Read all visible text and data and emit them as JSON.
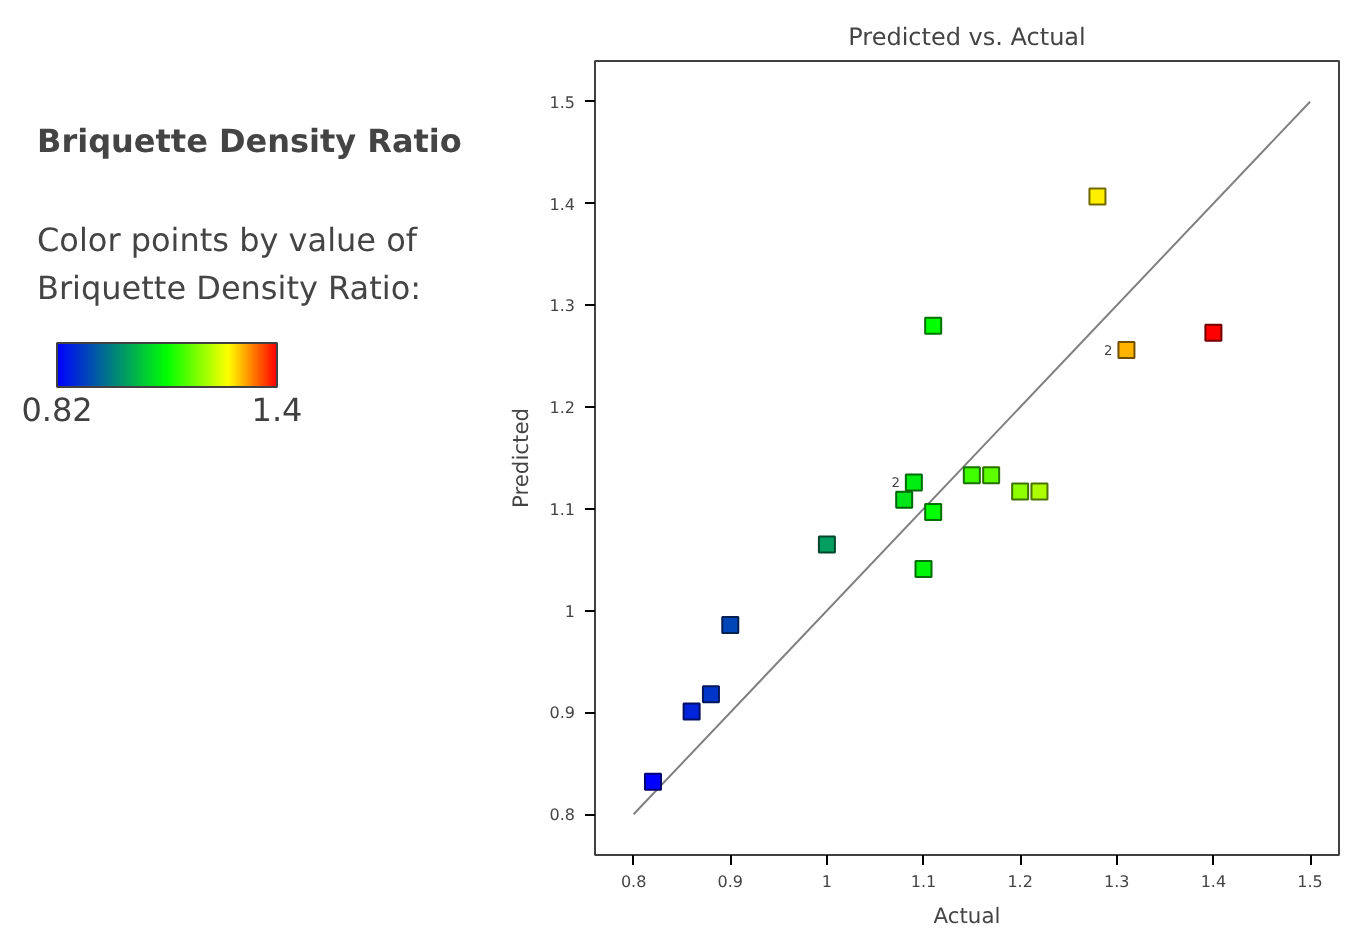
{
  "chart_data": {
    "type": "scatter",
    "title": "Predicted vs. Actual",
    "subtitle": "Briquette Density Ratio",
    "clabel": "Color points by value of Briquette Density Ratio:",
    "xlabel": "Actual",
    "ylabel": "Predicted",
    "series": [
      {
        "marker": "square",
        "x": [
          0.82,
          0.86,
          0.88,
          0.9,
          1.0,
          1.08,
          1.09,
          1.11,
          1.1,
          1.15,
          1.17,
          1.2,
          1.22,
          1.11,
          1.28,
          1.31,
          1.4
        ],
        "values": [
          0.832,
          0.901,
          0.918,
          0.986,
          1.065,
          1.109,
          1.126,
          1.097,
          1.041,
          1.133,
          1.133,
          1.117,
          1.117,
          1.28,
          1.407,
          1.256,
          1.273
        ],
        "cvalues": [
          0.82,
          0.86,
          0.88,
          0.9,
          1.0,
          1.08,
          1.09,
          1.11,
          1.1,
          1.15,
          1.17,
          1.2,
          1.22,
          1.11,
          1.28,
          1.31,
          1.4
        ],
        "colors": [
          "#0000ff",
          "#0023dc",
          "#0035ca",
          "#0046b9",
          "#009e61",
          "#00e51a",
          "#00ed12",
          "#00ff00",
          "#00f609",
          "#3fff00",
          "#5eff00",
          "#8dff00",
          "#adff00",
          "#00ff00",
          "#fff000",
          "#ffb400",
          "#ff0000"
        ]
      },
      {
        "type": "line",
        "marker": "none",
        "x": [
          0.8,
          1.5
        ],
        "values": [
          0.8,
          1.5
        ],
        "color": "#808080"
      }
    ],
    "clim": [
      0.82,
      1.4
    ],
    "cticks": [
      0.82,
      1.4
    ],
    "xlim": [
      0.76,
      1.53
    ],
    "ylim": [
      0.76,
      1.54
    ],
    "xticks": [
      0.8,
      0.9,
      1,
      1.1,
      1.2,
      1.3,
      1.4,
      1.5
    ],
    "yticks": [
      0.8,
      0.9,
      1,
      1.1,
      1.2,
      1.3,
      1.4,
      1.5
    ],
    "annotations": [
      {
        "text": "2",
        "x": 1.09,
        "y": 1.126
      },
      {
        "text": "2",
        "x": 1.31,
        "y": 1.256
      }
    ],
    "grid": false
  }
}
